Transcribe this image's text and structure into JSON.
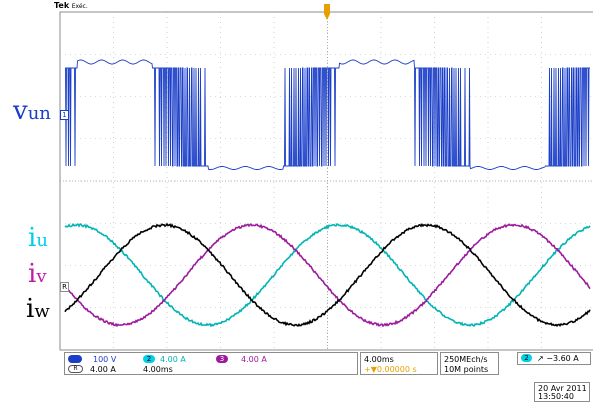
{
  "header": {
    "brand": "Tek",
    "mode": "Exéc."
  },
  "labels": {
    "vun": {
      "main": "v",
      "sub": "un",
      "color": "#1a3ec8"
    },
    "iu": {
      "main": "i",
      "sub": "u",
      "color": "#00cfe8"
    },
    "iv": {
      "main": "i",
      "sub": "v",
      "color": "#c01aa8"
    },
    "iw": {
      "main": "i",
      "sub": "w",
      "color": "#000000"
    }
  },
  "markers": {
    "ch1": "1",
    "ref": "R"
  },
  "status": {
    "ch1_scale": "100 V",
    "ch2_badge": "2",
    "ch2_scale": "4.00 A",
    "ch3_badge": "3",
    "ch3_scale": "4.00 A",
    "ref_badge": "R",
    "ref_scale": "4.00 A",
    "ref_time": "4.00ms",
    "timebase": "4.00ms",
    "delay": "+▼0.00000 s",
    "sample_rate": "250MEch/s",
    "record": "10M points",
    "trig_badge": "2",
    "trig_level": "↗ −3.60 A",
    "date": "20 Avr  2011",
    "time": "13:50:40"
  },
  "colors": {
    "ch1": "#1a3ec8",
    "ch2": "#00b4b4",
    "ch3": "#9c1a9c",
    "ref": "#000000",
    "grid": "#b4b4b4"
  }
}
